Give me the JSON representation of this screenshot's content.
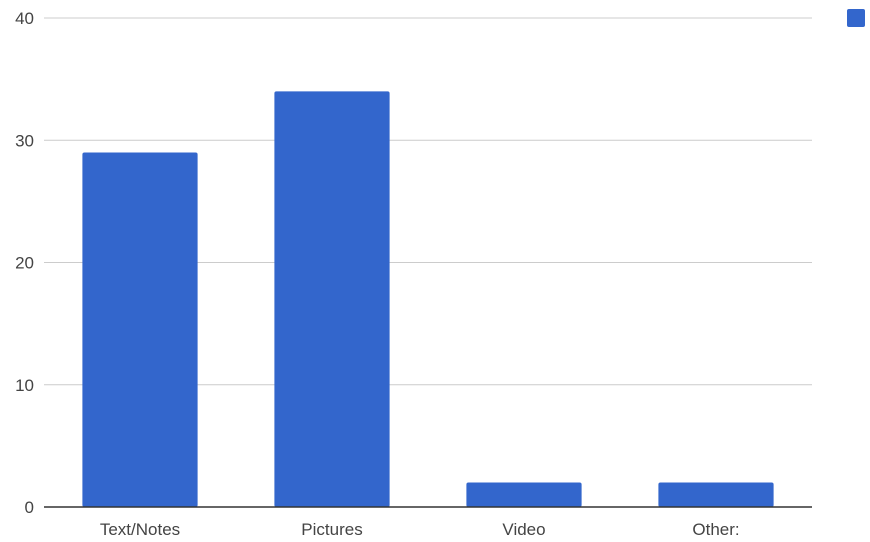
{
  "chart_data": {
    "type": "bar",
    "title": "",
    "xlabel": "",
    "ylabel": "",
    "categories": [
      "Text/Notes",
      "Pictures",
      "Video",
      "Other:"
    ],
    "series": [
      {
        "values": [
          29,
          34,
          2,
          2
        ],
        "color": "#3366cc"
      }
    ],
    "ylim": [
      0,
      40
    ],
    "yticks": [
      0,
      10,
      20,
      30,
      40
    ],
    "grid": true,
    "legend": "top-right",
    "colors": {
      "bar": "#3366cc",
      "grid": "#cccccc",
      "baseline": "#333333",
      "text": "#444444"
    }
  }
}
